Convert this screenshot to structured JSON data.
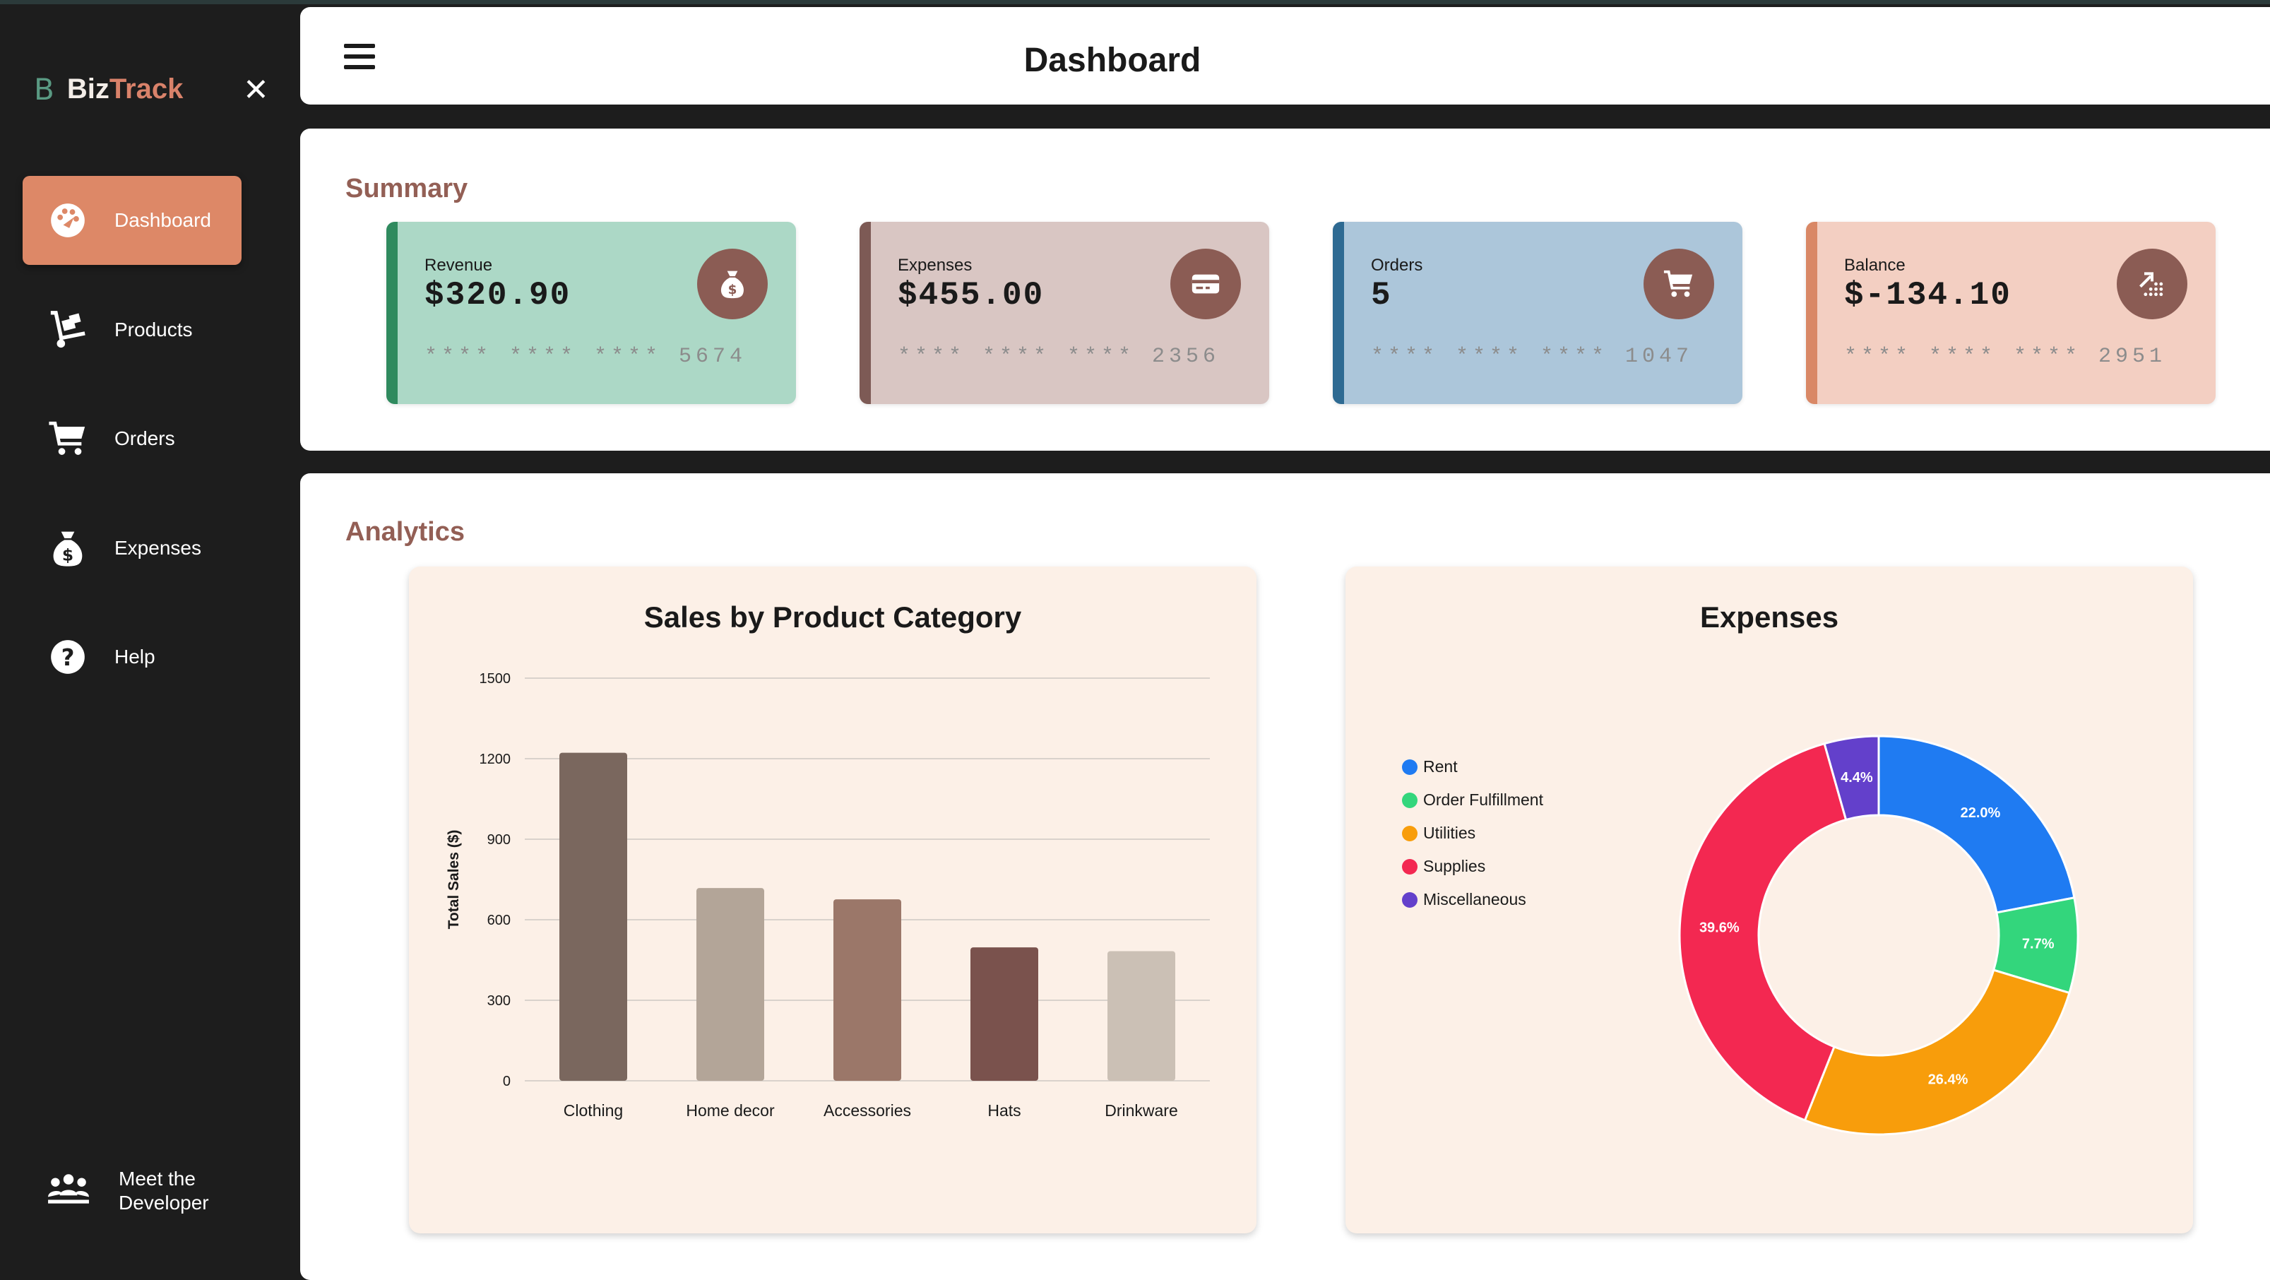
{
  "app": {
    "brand_part1": "Biz",
    "brand_part2": "Track",
    "logo_letter": "B",
    "close_glyph": "✕"
  },
  "sidebar": {
    "items": [
      {
        "label": "Dashboard",
        "icon": "palette-icon",
        "active": true
      },
      {
        "label": "Products",
        "icon": "hand-truck-icon",
        "active": false
      },
      {
        "label": "Orders",
        "icon": "cart-icon",
        "active": false
      },
      {
        "label": "Expenses",
        "icon": "money-bag-icon",
        "active": false
      },
      {
        "label": "Help",
        "icon": "question-icon",
        "active": false
      }
    ],
    "developer_label": "Meet the Developer",
    "developer_icon": "people-icon"
  },
  "header": {
    "title": "Dashboard",
    "menu_icon": "hamburger-icon"
  },
  "summary": {
    "title": "Summary",
    "cards": [
      {
        "label": "Revenue",
        "value": "$320.90",
        "mask": "**** **** **** 5674",
        "bg": "#acd8c6",
        "stripe": "#2f8a5e",
        "icon": "money-bag-icon"
      },
      {
        "label": "Expenses",
        "value": "$455.00",
        "mask": "**** **** **** 2356",
        "bg": "#d9c6c3",
        "stripe": "#7d5a55",
        "icon": "credit-card-icon"
      },
      {
        "label": "Orders",
        "value": "5",
        "mask": "**** **** **** 1047",
        "bg": "#acc6da",
        "stripe": "#2e6a92",
        "icon": "cart-icon"
      },
      {
        "label": "Balance",
        "value": "$-134.10",
        "mask": "**** **** **** 2951",
        "bg": "#f3cfc2",
        "stripe": "#d98866",
        "icon": "trend-icon"
      }
    ]
  },
  "analytics": {
    "title": "Analytics"
  },
  "chart_data": [
    {
      "type": "bar",
      "title": "Sales by Product Category",
      "xlabel": "",
      "ylabel": "Total Sales ($)",
      "categories": [
        "Clothing",
        "Home decor",
        "Accessories",
        "Hats",
        "Drinkware"
      ],
      "values": [
        1222,
        718,
        676,
        497,
        483
      ],
      "colors": [
        "#7a675e",
        "#b3a598",
        "#9b7769",
        "#7a524d",
        "#cbc0b5"
      ],
      "ylim": [
        0,
        1500
      ],
      "yticks": [
        0,
        300,
        600,
        900,
        1200,
        1500
      ],
      "grid": true
    },
    {
      "type": "pie",
      "subtype": "doughnut",
      "title": "Expenses",
      "labels": [
        "Rent",
        "Order Fulfillment",
        "Utilities",
        "Supplies",
        "Miscellaneous"
      ],
      "values": [
        22.0,
        7.7,
        26.4,
        39.6,
        4.4
      ],
      "value_labels": [
        "22.0%",
        "7.7%",
        "26.4%",
        "39.6%",
        "4.4%"
      ],
      "colors": [
        "#1f7bf2",
        "#33d67c",
        "#f89d0b",
        "#f32851",
        "#6340cb"
      ],
      "legend": "left"
    }
  ]
}
